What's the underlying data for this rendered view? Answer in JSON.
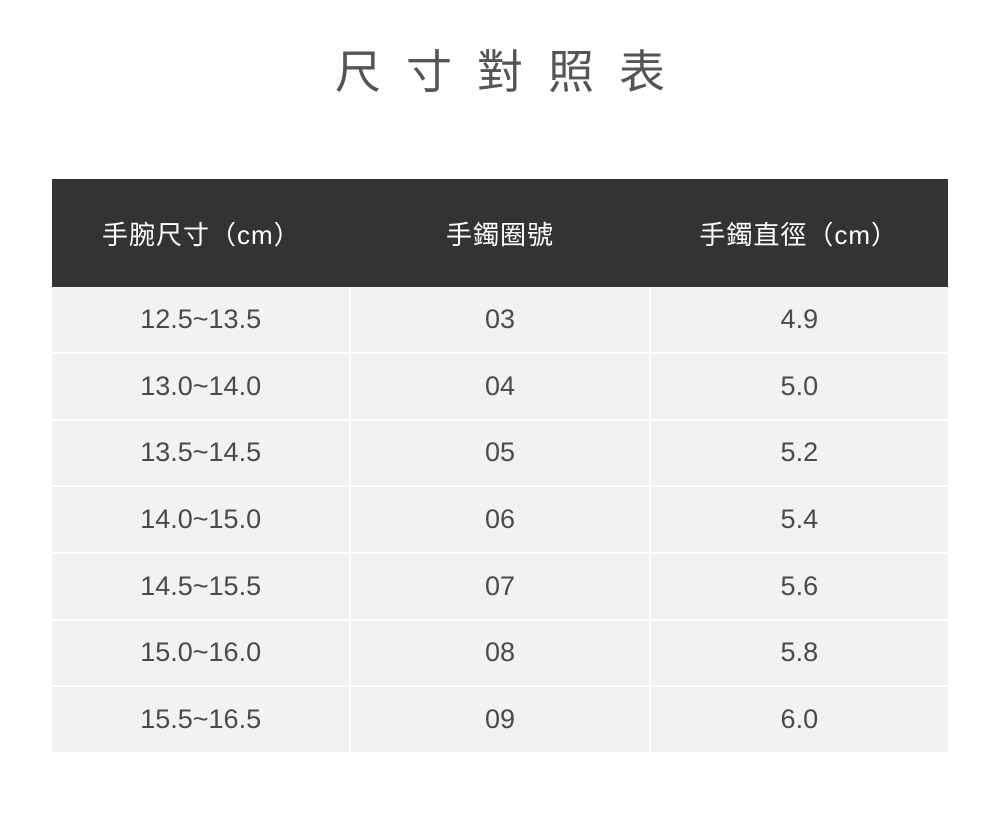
{
  "title": "尺寸對照表",
  "colors": {
    "page_background": "#ffffff",
    "title_text": "#555555",
    "header_background": "#333333",
    "header_text": "#ffffff",
    "row_background": "#f2f2f2",
    "cell_text": "#4a4a4a",
    "divider": "#ffffff"
  },
  "table": {
    "columns": [
      "手腕尺寸（cm）",
      "手鐲圈號",
      "手鐲直徑（cm）"
    ],
    "rows": [
      [
        "12.5~13.5",
        "03",
        "4.9"
      ],
      [
        "13.0~14.0",
        "04",
        "5.0"
      ],
      [
        "13.5~14.5",
        "05",
        "5.2"
      ],
      [
        "14.0~15.0",
        "06",
        "5.4"
      ],
      [
        "14.5~15.5",
        "07",
        "5.6"
      ],
      [
        "15.0~16.0",
        "08",
        "5.8"
      ],
      [
        "15.5~16.5",
        "09",
        "6.0"
      ]
    ]
  },
  "chart_data": {
    "type": "table",
    "title": "尺寸對照表",
    "columns": [
      "手腕尺寸（cm）",
      "手鐲圈號",
      "手鐲直徑（cm）"
    ],
    "rows": [
      [
        "12.5~13.5",
        "03",
        "4.9"
      ],
      [
        "13.0~14.0",
        "04",
        "5.0"
      ],
      [
        "13.5~14.5",
        "05",
        "5.2"
      ],
      [
        "14.0~15.0",
        "06",
        "5.4"
      ],
      [
        "14.5~15.5",
        "07",
        "5.6"
      ],
      [
        "15.0~16.0",
        "08",
        "5.8"
      ],
      [
        "15.5~16.5",
        "09",
        "6.0"
      ]
    ],
    "notes": "Bracelet size comparison chart: wrist size (cm) vs bangle ring number vs bangle inner diameter (cm)"
  }
}
